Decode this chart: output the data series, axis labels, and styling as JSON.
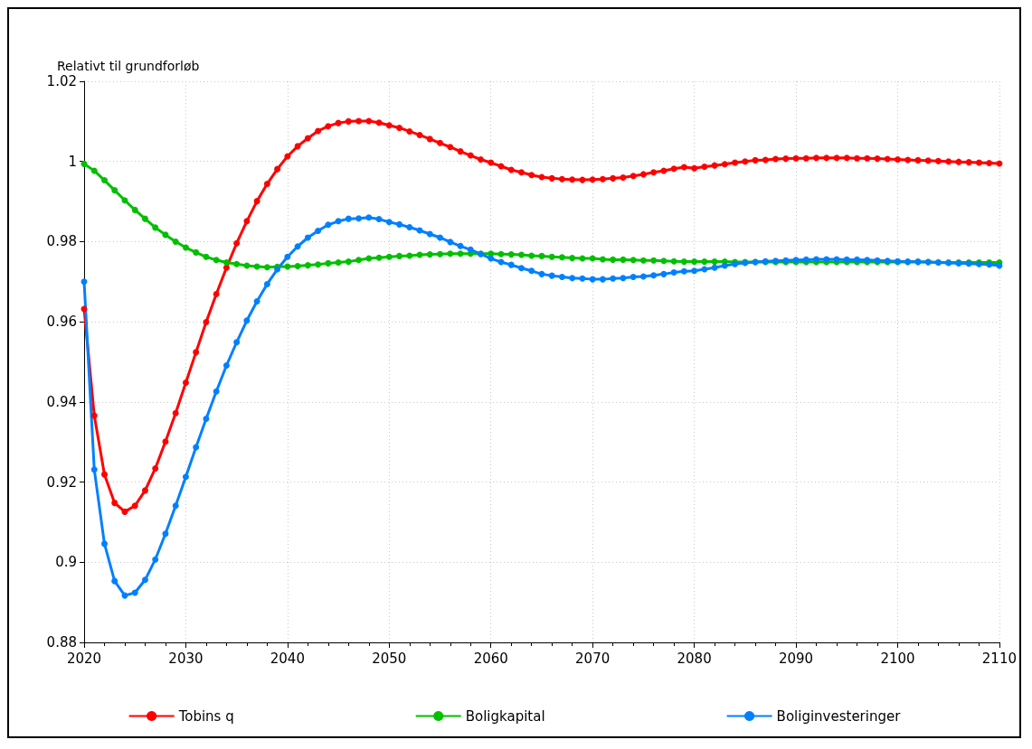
{
  "chart_data": {
    "type": "line",
    "ylabel": "Relativt til grundforløb",
    "x": [
      2020,
      2021,
      2022,
      2023,
      2024,
      2025,
      2026,
      2027,
      2028,
      2029,
      2030,
      2031,
      2032,
      2033,
      2034,
      2035,
      2036,
      2037,
      2038,
      2039,
      2040,
      2041,
      2042,
      2043,
      2044,
      2045,
      2046,
      2047,
      2048,
      2049,
      2050,
      2051,
      2052,
      2053,
      2054,
      2055,
      2056,
      2057,
      2058,
      2059,
      2060,
      2061,
      2062,
      2063,
      2064,
      2065,
      2066,
      2067,
      2068,
      2069,
      2070,
      2071,
      2072,
      2073,
      2074,
      2075,
      2076,
      2077,
      2078,
      2079,
      2080,
      2081,
      2082,
      2083,
      2084,
      2085,
      2086,
      2087,
      2088,
      2089,
      2090,
      2091,
      2092,
      2093,
      2094,
      2095,
      2096,
      2097,
      2098,
      2099,
      2100,
      2101,
      2102,
      2103,
      2104,
      2105,
      2106,
      2107,
      2108,
      2109,
      2110
    ],
    "series": [
      {
        "name": "Tobins q",
        "color": "#ff0000",
        "values": [
          0.9632,
          0.9366,
          0.9219,
          0.9148,
          0.9126,
          0.9141,
          0.9179,
          0.9234,
          0.9301,
          0.9372,
          0.9448,
          0.9524,
          0.9599,
          0.9669,
          0.9735,
          0.9796,
          0.9851,
          0.9901,
          0.9944,
          0.9981,
          1.0013,
          1.0038,
          1.0058,
          1.0076,
          1.0088,
          1.0096,
          1.01,
          1.0101,
          1.0101,
          1.0097,
          1.009,
          1.0084,
          1.0075,
          1.0066,
          1.0056,
          1.0046,
          1.0036,
          1.0025,
          1.0015,
          1.0005,
          0.9997,
          0.9988,
          0.9979,
          0.9973,
          0.9966,
          0.9961,
          0.9958,
          0.9956,
          0.9955,
          0.9954,
          0.9955,
          0.9956,
          0.9958,
          0.996,
          0.9964,
          0.9968,
          0.9973,
          0.9977,
          0.9982,
          0.9986,
          0.9983,
          0.9987,
          0.999,
          0.9993,
          0.9997,
          1.0,
          1.0003,
          1.0004,
          1.0006,
          1.0007,
          1.0008,
          1.0008,
          1.0009,
          1.0009,
          1.0009,
          1.0009,
          1.0008,
          1.0008,
          1.0007,
          1.0006,
          1.0005,
          1.0004,
          1.0003,
          1.0002,
          1.0001,
          1.0,
          0.9999,
          0.9998,
          0.9997,
          0.9996,
          0.9995
        ]
      },
      {
        "name": "Boligkapital",
        "color": "#00c000",
        "values": [
          0.9994,
          0.9977,
          0.9953,
          0.9928,
          0.9903,
          0.9879,
          0.9857,
          0.9835,
          0.9817,
          0.98,
          0.9785,
          0.9773,
          0.9762,
          0.9754,
          0.9748,
          0.9744,
          0.974,
          0.9738,
          0.9736,
          0.9737,
          0.9738,
          0.9739,
          0.9741,
          0.9743,
          0.9746,
          0.9748,
          0.975,
          0.9754,
          0.9758,
          0.976,
          0.9762,
          0.9764,
          0.9765,
          0.9767,
          0.9768,
          0.9769,
          0.977,
          0.977,
          0.977,
          0.977,
          0.977,
          0.9769,
          0.9768,
          0.9767,
          0.9765,
          0.9764,
          0.9762,
          0.9761,
          0.9759,
          0.9758,
          0.9758,
          0.9756,
          0.9755,
          0.9755,
          0.9754,
          0.9753,
          0.9753,
          0.9752,
          0.9751,
          0.975,
          0.975,
          0.975,
          0.975,
          0.975,
          0.9749,
          0.9749,
          0.9749,
          0.9749,
          0.9749,
          0.9749,
          0.9749,
          0.9749,
          0.9749,
          0.9749,
          0.9749,
          0.9749,
          0.9749,
          0.9749,
          0.9749,
          0.9749,
          0.9749,
          0.9749,
          0.9749,
          0.9749,
          0.9748,
          0.9748,
          0.9748,
          0.9748,
          0.9748,
          0.9748,
          0.9748
        ]
      },
      {
        "name": "Boliginvesteringer",
        "color": "#0080ff",
        "values": [
          0.97,
          0.9231,
          0.9046,
          0.8953,
          0.8917,
          0.8924,
          0.8956,
          0.9007,
          0.9071,
          0.9141,
          0.9213,
          0.9287,
          0.9358,
          0.9426,
          0.9491,
          0.9549,
          0.9603,
          0.9651,
          0.9694,
          0.9731,
          0.9762,
          0.9788,
          0.981,
          0.9827,
          0.9842,
          0.9851,
          0.9857,
          0.9858,
          0.986,
          0.9856,
          0.9849,
          0.9843,
          0.9836,
          0.9828,
          0.9819,
          0.981,
          0.9799,
          0.9789,
          0.978,
          0.9769,
          0.9758,
          0.9749,
          0.9742,
          0.9734,
          0.9727,
          0.9719,
          0.9715,
          0.9712,
          0.9709,
          0.9708,
          0.9706,
          0.9706,
          0.9708,
          0.9709,
          0.9712,
          0.9713,
          0.9716,
          0.9719,
          0.9723,
          0.9726,
          0.9727,
          0.9731,
          0.9735,
          0.974,
          0.9744,
          0.9747,
          0.9749,
          0.9751,
          0.9752,
          0.9753,
          0.9754,
          0.9755,
          0.9756,
          0.9756,
          0.9756,
          0.9755,
          0.9755,
          0.9754,
          0.9753,
          0.9752,
          0.9751,
          0.975,
          0.975,
          0.9749,
          0.9748,
          0.9747,
          0.9746,
          0.9745,
          0.9744,
          0.9743,
          0.974
        ]
      }
    ],
    "xlim": [
      2020,
      2110
    ],
    "xticks": [
      2020,
      2030,
      2040,
      2050,
      2060,
      2070,
      2080,
      2090,
      2100,
      2110
    ],
    "ylim": [
      0.88,
      1.02
    ],
    "yticks": [
      0.88,
      0.9,
      0.92,
      0.94,
      0.96,
      0.98,
      1,
      1.02
    ],
    "grid": true,
    "legend": "bottom",
    "marker": "circle",
    "line_style": "solid"
  }
}
